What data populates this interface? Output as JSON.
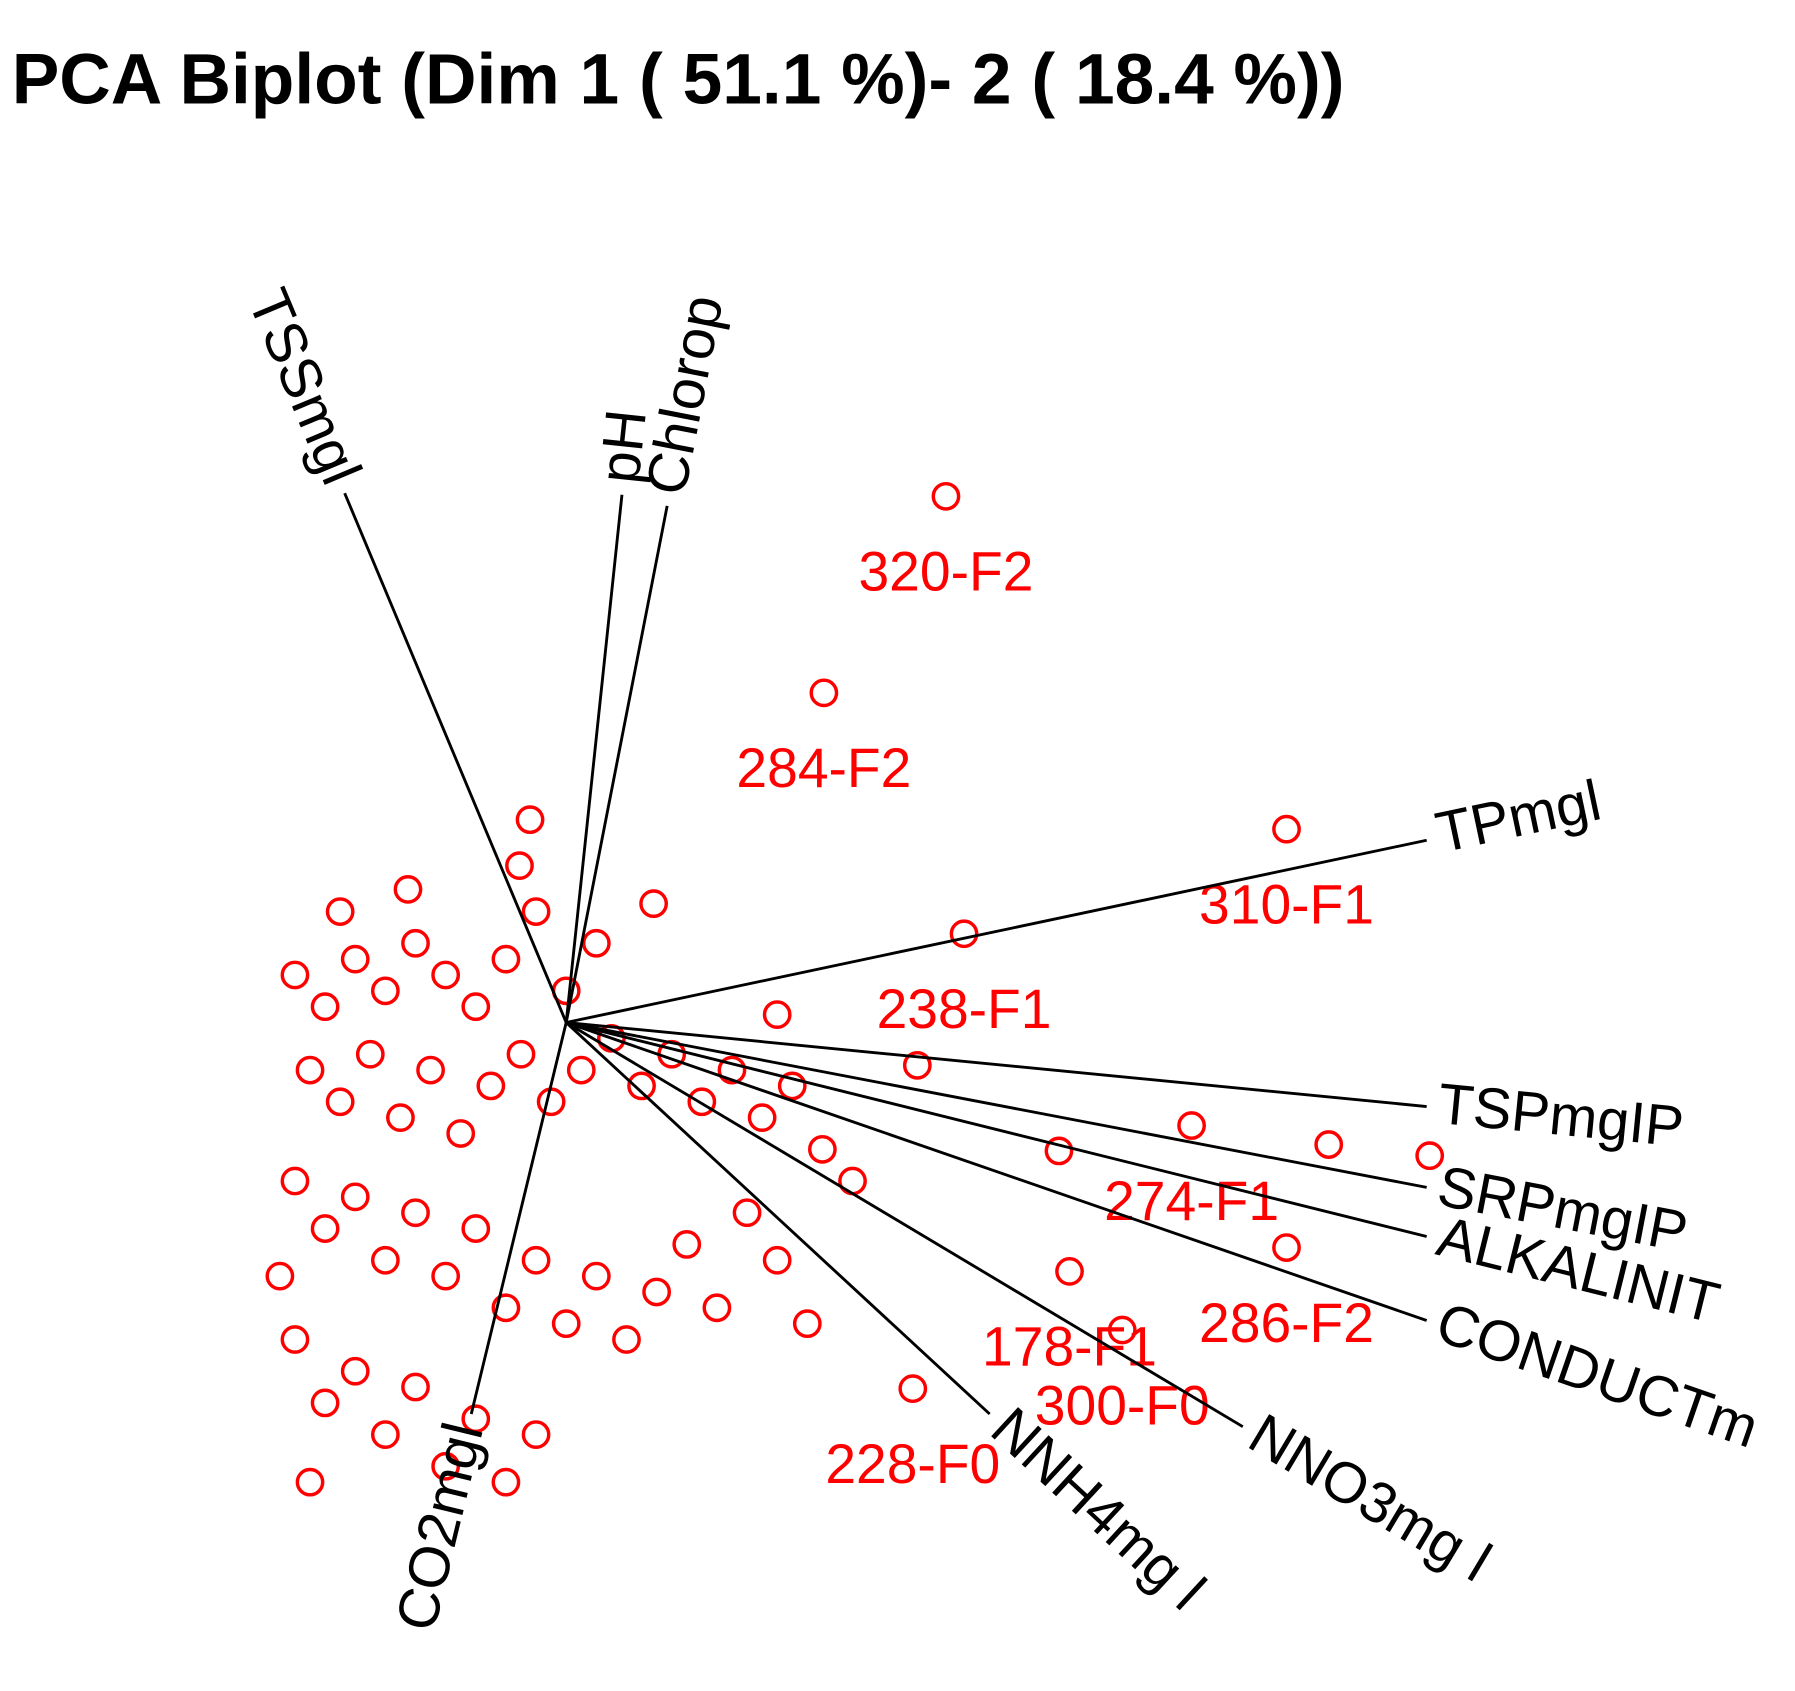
{
  "chart_data": {
    "type": "scatter",
    "title": "PCA Biplot (Dim 1 ( 51.1 %)- 2 ( 18.4 %))",
    "color": "#ff0000",
    "xlim": [
      -2,
      8
    ],
    "ylim": [
      -4,
      5
    ],
    "x": [
      2.52,
      1.71,
      4.78,
      2.64,
      4.15,
      3.69,
      2.3,
      4.78,
      3.34,
      -0.24,
      -0.31,
      0.58,
      2.33,
      1.4,
      5.06,
      5.73,
      3.27,
      -1.05,
      -1.8,
      -1.6,
      -1.4,
      -1.2,
      -1.0,
      -0.8,
      -0.6,
      -0.4,
      -1.7,
      -1.5,
      -1.3,
      -1.1,
      -0.9,
      -0.7,
      -0.5,
      -0.3,
      -0.1,
      0.1,
      0.3,
      0.5,
      0.7,
      0.9,
      1.1,
      1.3,
      1.5,
      1.7,
      1.9,
      -1.8,
      -1.6,
      -1.4,
      -1.2,
      -1.0,
      -0.8,
      -0.6,
      -0.4,
      -0.2,
      0.0,
      0.2,
      0.4,
      0.6,
      0.8,
      1.0,
      1.2,
      1.4,
      1.6,
      -1.8,
      -1.6,
      -1.4,
      -1.2,
      -1.0,
      -0.8,
      -0.6,
      -0.4,
      -0.2,
      -1.7,
      0.0,
      0.2,
      -0.2,
      -1.5,
      -1.9
    ],
    "values": [
      3.32,
      2.08,
      1.22,
      0.56,
      -0.65,
      -1.94,
      -2.31,
      -1.42,
      -1.57,
      1.28,
      0.99,
      0.75,
      -0.27,
      0.05,
      -0.77,
      -0.84,
      -0.81,
      0.84,
      0.3,
      0.1,
      0.4,
      0.2,
      0.5,
      0.3,
      0.1,
      0.4,
      -0.3,
      -0.5,
      -0.2,
      -0.6,
      -0.3,
      -0.7,
      -0.4,
      -0.2,
      -0.5,
      -0.3,
      -0.1,
      -0.4,
      -0.2,
      -0.5,
      -0.3,
      -0.6,
      -0.4,
      -0.8,
      -1.0,
      -1.0,
      -1.3,
      -1.1,
      -1.5,
      -1.2,
      -1.6,
      -1.3,
      -1.8,
      -1.5,
      -1.9,
      -1.6,
      -2.0,
      -1.7,
      -1.4,
      -1.8,
      -1.2,
      -1.5,
      -1.9,
      -2.0,
      -2.4,
      -2.2,
      -2.6,
      -2.3,
      -2.8,
      -2.5,
      -2.9,
      -2.6,
      -2.9,
      0.2,
      0.5,
      0.7,
      0.7,
      -1.6
    ],
    "point_labels": [
      "320-F2",
      "284-F2",
      "310-F1",
      "238-F1",
      "274-F1",
      "300-F0",
      "228-F0",
      "286-F2",
      "178-F1",
      null,
      null,
      null,
      null,
      null,
      null,
      null,
      null,
      null,
      null,
      null,
      null,
      null,
      null,
      null,
      null,
      null,
      null,
      null,
      null,
      null,
      null,
      null,
      null,
      null,
      null,
      null,
      null,
      null,
      null,
      null,
      null,
      null,
      null,
      null,
      null,
      null,
      null,
      null,
      null,
      null,
      null,
      null,
      null,
      null,
      null,
      null,
      null,
      null,
      null,
      null,
      null,
      null,
      null,
      null,
      null,
      null,
      null,
      null,
      null,
      null,
      null,
      null,
      null,
      null,
      null,
      null,
      null,
      null
    ],
    "loadings": {
      "labels": [
        "TSSmgl",
        "pH",
        "Chlorop",
        "TPmgl",
        "TSPmgIP",
        "SRPmgIP",
        "ALKALINIT",
        "CONDUCTm",
        "NNO3mg l",
        "NNH4mg l",
        "CO2mgl"
      ],
      "x": [
        -1.47,
        0.37,
        0.67,
        5.71,
        5.71,
        5.71,
        5.71,
        5.71,
        4.49,
        2.81,
        -0.63
      ],
      "y": [
        3.34,
        3.33,
        3.26,
        1.15,
        -0.53,
        -1.04,
        -1.35,
        -1.88,
        -2.55,
        -2.47,
        -2.47
      ]
    }
  }
}
